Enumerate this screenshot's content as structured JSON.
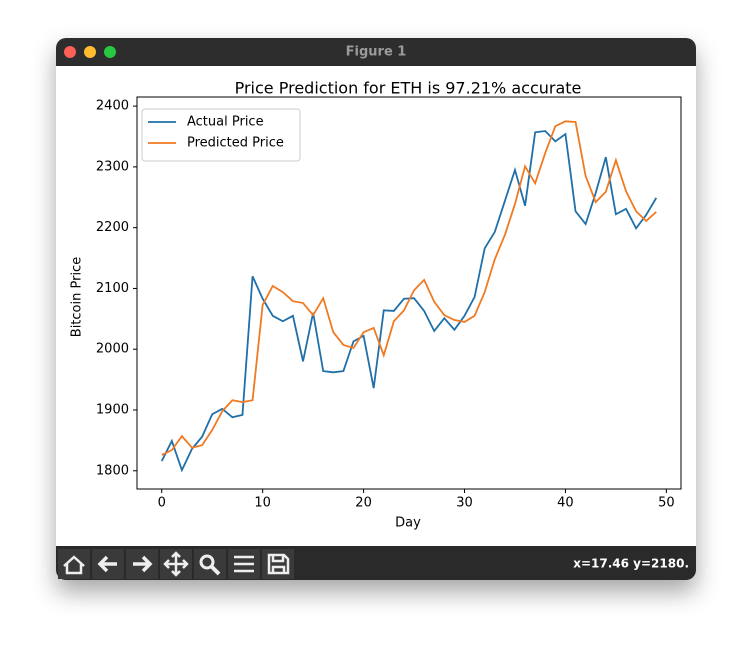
{
  "window": {
    "title": "Figure 1",
    "status": "x=17.46 y=2180."
  },
  "chart_data": {
    "type": "line",
    "title": "Price Prediction for ETH is 97.21% accurate",
    "x_label": "Day",
    "y_label": "Bitcoin Price",
    "x": [
      0,
      1,
      2,
      3,
      4,
      5,
      6,
      7,
      8,
      9,
      10,
      11,
      12,
      13,
      14,
      15,
      16,
      17,
      18,
      19,
      20,
      21,
      22,
      23,
      24,
      25,
      26,
      27,
      28,
      29,
      30,
      31,
      32,
      33,
      34,
      35,
      36,
      37,
      38,
      39,
      40,
      41,
      42,
      43,
      44,
      45,
      46,
      47,
      48,
      49
    ],
    "series": [
      {
        "name": "Actual Price",
        "color": "#1f6fa8",
        "values": [
          1816,
          1849,
          1801,
          1836,
          1856,
          1893,
          1902,
          1888,
          1892,
          2120,
          2083,
          2055,
          2046,
          2055,
          1980,
          2060,
          1964,
          1962,
          1964,
          2013,
          2022,
          1936,
          2064,
          2063,
          2083,
          2084,
          2063,
          2030,
          2051,
          2032,
          2055,
          2086,
          2166,
          2193,
          2244,
          2295,
          2236,
          2357,
          2359,
          2342,
          2354,
          2227,
          2206,
          2257,
          2316,
          2222,
          2231,
          2199,
          2221,
          2249
        ]
      },
      {
        "name": "Predicted Price",
        "color": "#f07a22",
        "values": [
          1826,
          1834,
          1857,
          1838,
          1842,
          1867,
          1898,
          1916,
          1913,
          1916,
          2073,
          2104,
          2094,
          2079,
          2076,
          2056,
          2084,
          2028,
          2007,
          2002,
          2028,
          2035,
          1990,
          2046,
          2064,
          2097,
          2114,
          2078,
          2056,
          2048,
          2045,
          2055,
          2094,
          2148,
          2188,
          2239,
          2301,
          2273,
          2323,
          2367,
          2375,
          2374,
          2285,
          2242,
          2259,
          2311,
          2260,
          2227,
          2211,
          2226
        ]
      }
    ],
    "xlim": [
      -2.45,
      51.45
    ],
    "xticks": [
      0,
      10,
      20,
      30,
      40,
      50
    ],
    "ylim": [
      1770,
      2415
    ],
    "yticks": [
      1800,
      1900,
      2000,
      2100,
      2200,
      2300,
      2400
    ],
    "grid": false,
    "legend": "upper left"
  }
}
